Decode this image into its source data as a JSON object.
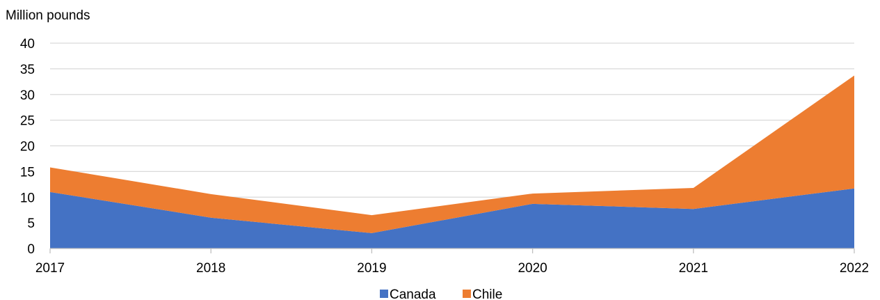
{
  "chart_data": {
    "type": "area",
    "stacked": true,
    "ylabel": "Million pounds",
    "x": [
      "2017",
      "2018",
      "2019",
      "2020",
      "2021",
      "2022"
    ],
    "ylim": [
      0,
      40
    ],
    "yticks": [
      "0",
      "5",
      "10",
      "15",
      "20",
      "25",
      "30",
      "35",
      "40"
    ],
    "grid": true,
    "legend_position": "bottom",
    "series": [
      {
        "name": "Canada",
        "color": "#4472C4",
        "values": [
          11.0,
          6.0,
          3.0,
          8.7,
          7.7,
          11.7
        ]
      },
      {
        "name": "Chile",
        "color": "#ED7D31",
        "values": [
          4.8,
          4.6,
          3.5,
          2.0,
          4.1,
          22.0
        ]
      }
    ]
  }
}
